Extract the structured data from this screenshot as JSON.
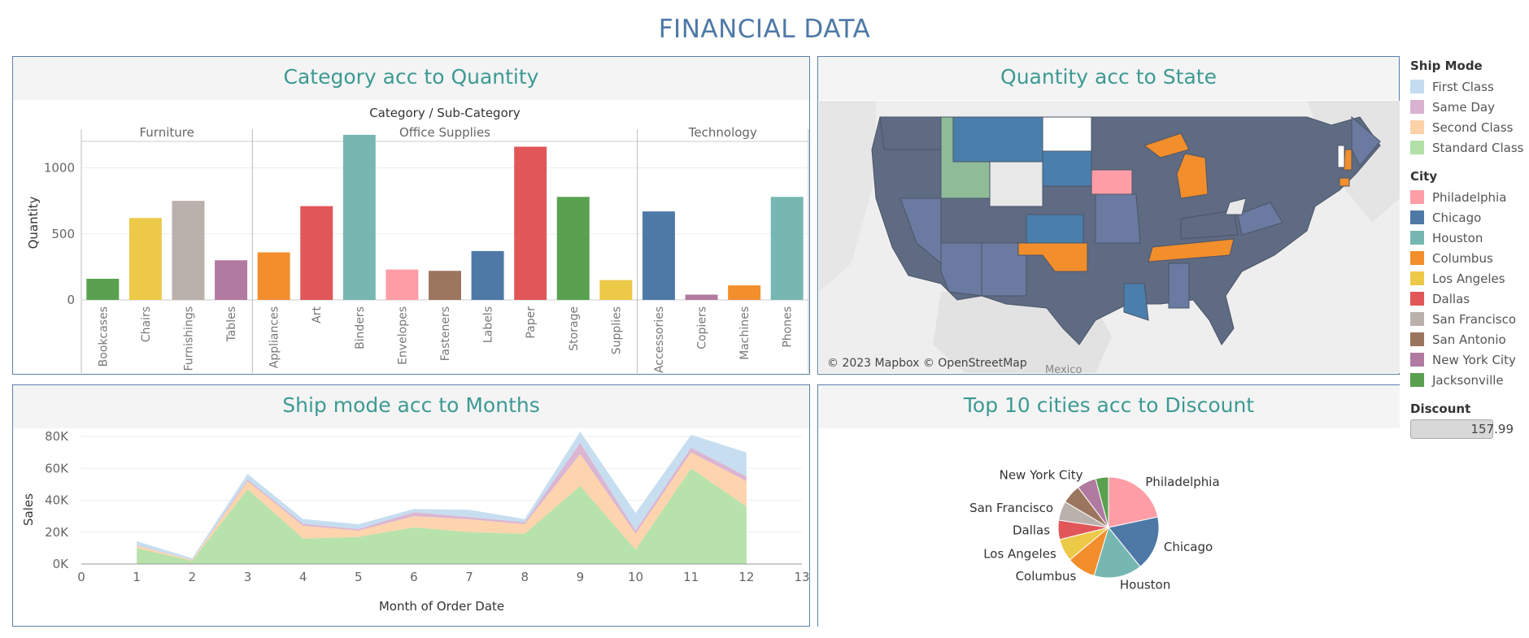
{
  "title": "FINANCIAL DATA",
  "panels": {
    "category": "Category acc to Quantity",
    "state": "Quantity acc to State",
    "shipmode": "Ship mode acc to Months",
    "cities": "Top 10 cities acc to Discount"
  },
  "map": {
    "credit": "© 2023 Mapbox © OpenStreetMap",
    "country_label": "Mexico"
  },
  "legend": {
    "ship_mode_title": "Ship Mode",
    "ship_modes": [
      {
        "label": "First Class",
        "color": "#c3dcef"
      },
      {
        "label": "Same Day",
        "color": "#d9b2d0"
      },
      {
        "label": "Second Class",
        "color": "#fdd2a9"
      },
      {
        "label": "Standard Class",
        "color": "#b3e0a6"
      }
    ],
    "city_title": "City",
    "cities": [
      {
        "label": "Philadelphia",
        "color": "#ff9da7"
      },
      {
        "label": "Chicago",
        "color": "#4e79a7"
      },
      {
        "label": "Houston",
        "color": "#76b7b2"
      },
      {
        "label": "Columbus",
        "color": "#f28e2b"
      },
      {
        "label": "Los Angeles",
        "color": "#edc948"
      },
      {
        "label": "Dallas",
        "color": "#e15759"
      },
      {
        "label": "San Francisco",
        "color": "#bab0ac"
      },
      {
        "label": "San Antonio",
        "color": "#9c755f"
      },
      {
        "label": "New York City",
        "color": "#b07aa1"
      },
      {
        "label": "Jacksonville",
        "color": "#59a14f"
      }
    ],
    "discount_title": "Discount",
    "discount_value": "157.99"
  },
  "chart_data": [
    {
      "type": "bar",
      "title": "Category acc to Quantity",
      "header": "Category / Sub-Category",
      "ylabel": "Quantity",
      "ylim": [
        0,
        1200
      ],
      "yticks": [
        "0",
        "500",
        "1000"
      ],
      "groups": [
        {
          "name": "Furniture",
          "categories": [
            "Bookcases",
            "Chairs",
            "Furnishings",
            "Tables"
          ],
          "values": [
            160,
            620,
            750,
            300
          ],
          "colors": [
            "#59a14f",
            "#edc948",
            "#bab0ac",
            "#b07aa1"
          ]
        },
        {
          "name": "Office Supplies",
          "categories": [
            "Appliances",
            "Art",
            "Binders",
            "Envelopes",
            "Fasteners",
            "Labels",
            "Paper",
            "Storage",
            "Supplies"
          ],
          "values": [
            360,
            710,
            1250,
            230,
            220,
            370,
            1160,
            780,
            150
          ],
          "colors": [
            "#f28e2b",
            "#e15759",
            "#76b7b2",
            "#ff9da7",
            "#9c755f",
            "#4e79a7",
            "#e15759",
            "#59a14f",
            "#edc948"
          ]
        },
        {
          "name": "Technology",
          "categories": [
            "Accessories",
            "Copiers",
            "Machines",
            "Phones"
          ],
          "values": [
            670,
            40,
            110,
            780
          ],
          "colors": [
            "#4e79a7",
            "#b07aa1",
            "#f28e2b",
            "#76b7b2"
          ]
        }
      ]
    },
    {
      "type": "area",
      "title": "Ship mode acc to Months",
      "xlabel": "Month of Order Date",
      "ylabel": "Sales",
      "xlim": [
        0,
        13
      ],
      "ylim": [
        0,
        80000
      ],
      "yticks": [
        "0K",
        "20K",
        "40K",
        "60K",
        "80K"
      ],
      "x": [
        1,
        2,
        3,
        4,
        5,
        6,
        7,
        8,
        9,
        10,
        11,
        12
      ],
      "series": [
        {
          "name": "Standard Class",
          "color": "#b3e0a6",
          "values": [
            10000,
            2000,
            47000,
            16000,
            17000,
            23000,
            20000,
            19000,
            49000,
            9000,
            60000,
            36000
          ]
        },
        {
          "name": "Second Class",
          "color": "#fdd2a9",
          "values": [
            1500,
            500,
            5000,
            8000,
            4000,
            7000,
            8000,
            6000,
            20000,
            10000,
            10000,
            16000
          ]
        },
        {
          "name": "Same Day",
          "color": "#d9b2d0",
          "values": [
            300,
            100,
            1000,
            1200,
            1000,
            2500,
            1500,
            1200,
            7000,
            2000,
            3000,
            3000
          ]
        },
        {
          "name": "First Class",
          "color": "#c3dcef",
          "values": [
            2500,
            1000,
            3500,
            3000,
            3000,
            2000,
            4500,
            2000,
            7000,
            11000,
            8000,
            15000
          ]
        }
      ]
    },
    {
      "type": "pie",
      "title": "Top 10 cities acc to Discount",
      "labels": [
        "Philadelphia",
        "Chicago",
        "Houston",
        "Columbus",
        "Los Angeles",
        "Dallas",
        "San Francisco",
        "San Antonio",
        "New York City",
        "Jacksonville"
      ],
      "values": [
        21,
        17,
        15,
        9,
        7,
        6,
        6,
        6,
        6,
        4
      ],
      "colors": [
        "#ff9da7",
        "#4e79a7",
        "#76b7b2",
        "#f28e2b",
        "#edc948",
        "#e15759",
        "#bab0ac",
        "#9c755f",
        "#b07aa1",
        "#59a14f"
      ],
      "shown_labels": [
        "Philadelphia",
        "Chicago",
        "Houston",
        "Columbus",
        "Los Angeles",
        "Dallas",
        "San Francisco",
        "New York City"
      ]
    },
    {
      "type": "map",
      "title": "Quantity acc to State",
      "colors": {
        "Chicago": "#4e79a7",
        "Columbus": "#f28e2b",
        "Philadelphia": "#ff9da7",
        "Houston": "#76b7b2",
        "other": "#5f6b83",
        "no data": "#e8e8e8"
      }
    }
  ]
}
